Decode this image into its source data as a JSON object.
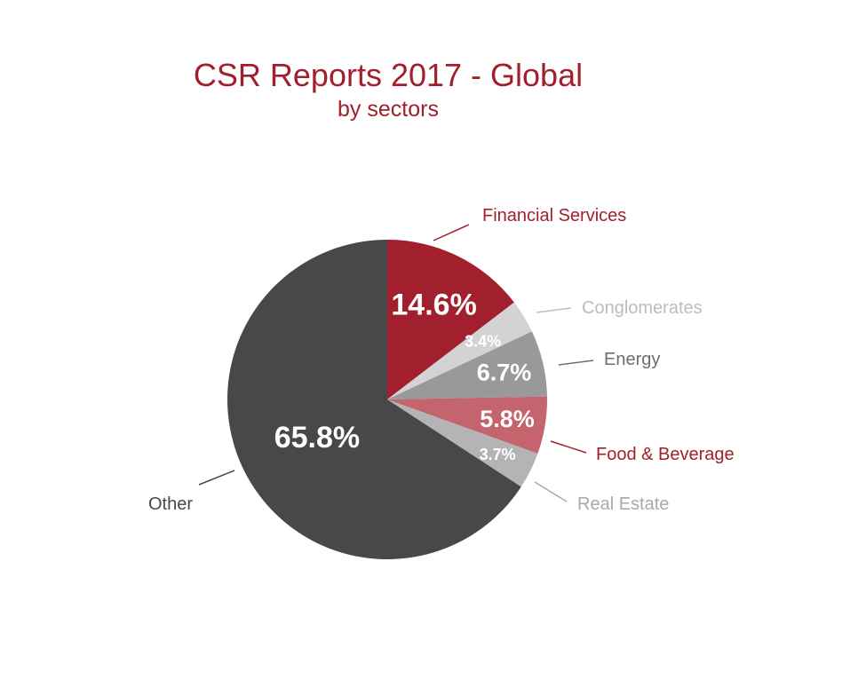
{
  "chart_data": {
    "type": "pie",
    "title": "CSR Reports 2017 - Global",
    "subtitle": "by sectors",
    "slices": [
      {
        "label": "Financial Services",
        "value": 14.6,
        "display": "14.6%",
        "color": "#a21f2d",
        "label_color": "#a21f2d"
      },
      {
        "label": "Conglomerates",
        "value": 3.4,
        "display": "3.4%",
        "color": "#d3d3d5",
        "label_color": "#bcbcbf"
      },
      {
        "label": "Energy",
        "value": 6.7,
        "display": "6.7%",
        "color": "#99999c",
        "label_color": "#6e6e72"
      },
      {
        "label": "Food & Beverage",
        "value": 5.8,
        "display": "5.8%",
        "color": "#c4646d",
        "label_color": "#a21f2d"
      },
      {
        "label": "Real Estate",
        "value": 3.7,
        "display": "3.7%",
        "color": "#b4b4b7",
        "label_color": "#a9a9ac"
      },
      {
        "label": "Other",
        "value": 65.8,
        "display": "65.8%",
        "color": "#48484b",
        "label_color": "#48484b"
      }
    ]
  },
  "colors": {
    "title": "#a21f2d",
    "background": "#ffffff"
  }
}
